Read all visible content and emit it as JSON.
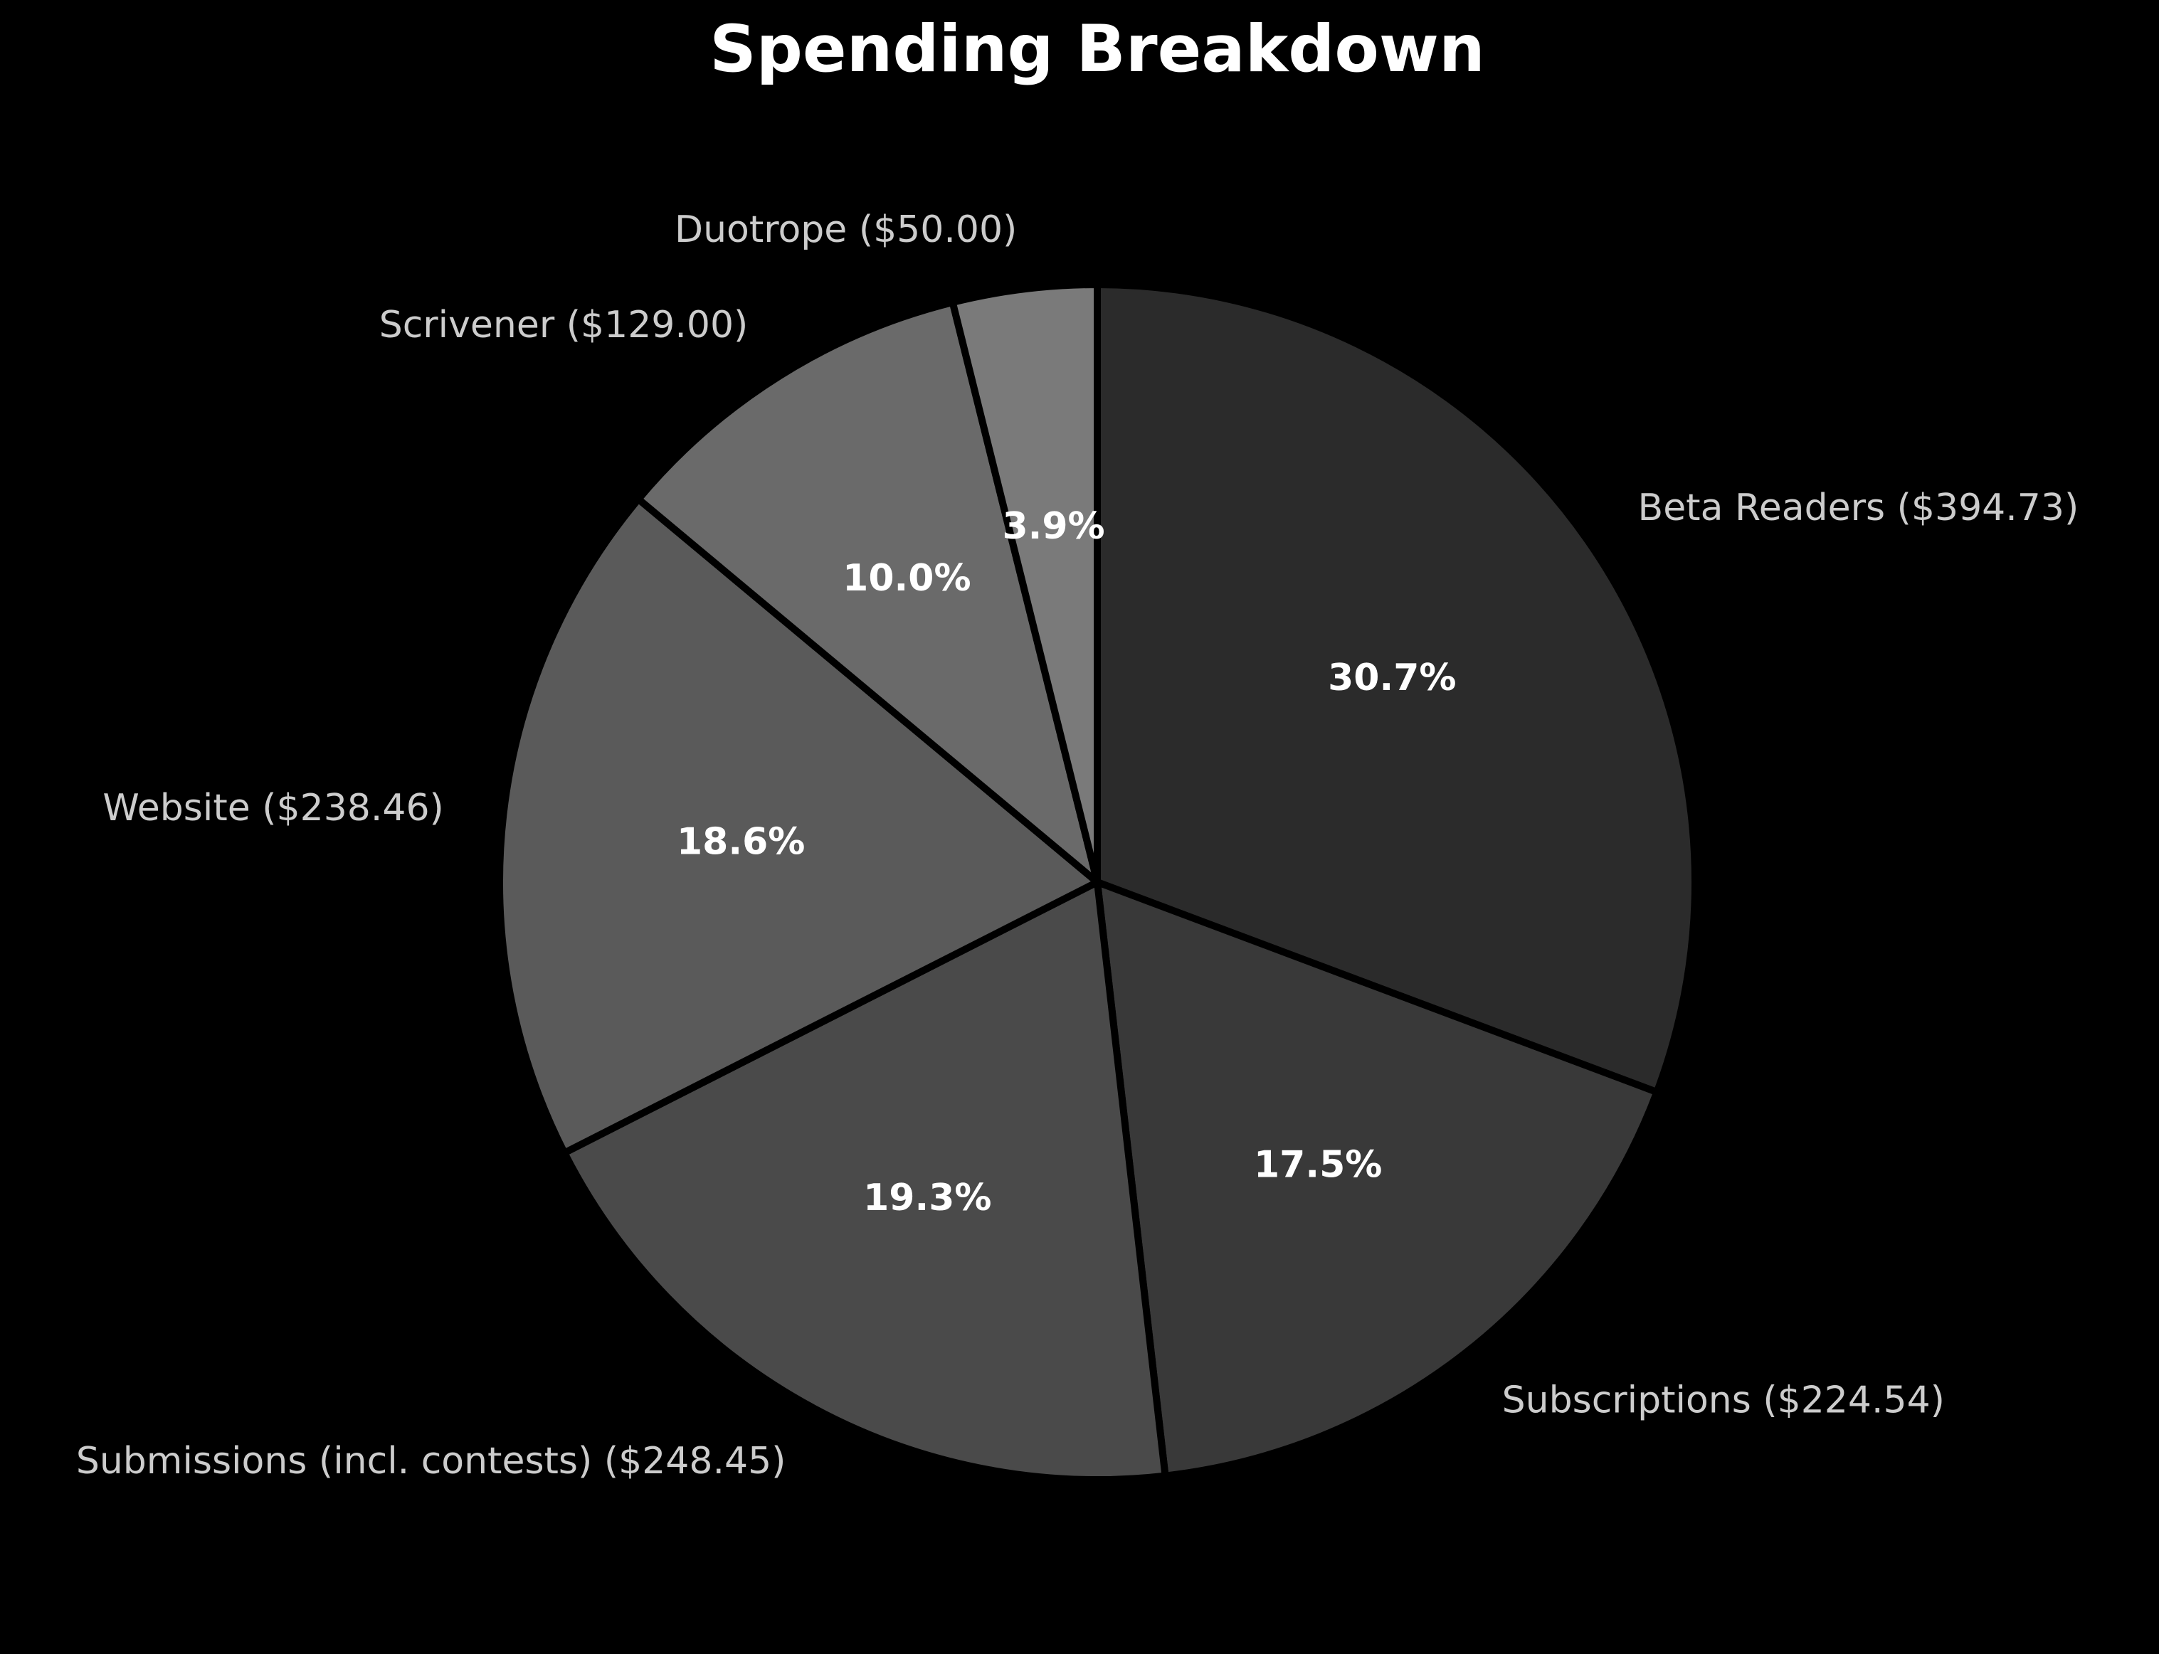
{
  "chart_data": {
    "type": "pie",
    "title": "Spending Breakdown",
    "start_angle_deg": 90,
    "direction": "clockwise",
    "slices": [
      {
        "label": "Beta Readers ($394.73)",
        "name": "Beta Readers",
        "value": 394.73,
        "pct_label": "30.7%",
        "color": "#2b2b2b"
      },
      {
        "label": "Subscriptions ($224.54)",
        "name": "Subscriptions",
        "value": 224.54,
        "pct_label": "17.5%",
        "color": "#393939"
      },
      {
        "label": "Submissions (incl. contests) ($248.45)",
        "name": "Submissions (incl. contests)",
        "value": 248.45,
        "pct_label": "19.3%",
        "color": "#4a4a4a"
      },
      {
        "label": "Website ($238.46)",
        "name": "Website",
        "value": 238.46,
        "pct_label": "18.6%",
        "color": "#5a5a5a"
      },
      {
        "label": "Scrivener ($129.00)",
        "name": "Scrivener",
        "value": 129.0,
        "pct_label": "10.0%",
        "color": "#6a6a6a"
      },
      {
        "label": "Duotrope ($50.00)",
        "name": "Duotrope",
        "value": 50.0,
        "pct_label": "3.9%",
        "color": "#7a7a7a"
      }
    ],
    "edge_color": "#000000",
    "background": "#000000",
    "label_color": "#cccccc",
    "pct_color": "#ffffff"
  }
}
